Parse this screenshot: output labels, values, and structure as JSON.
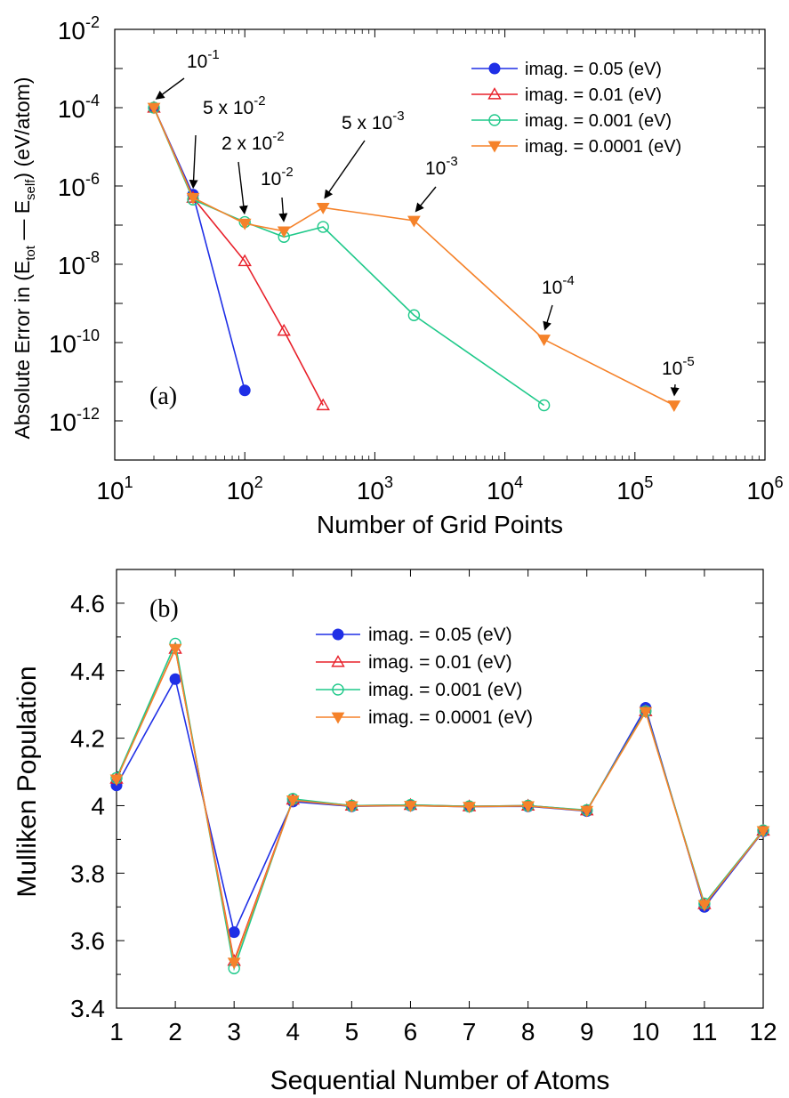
{
  "chart_data": [
    {
      "panel_label": "(a)",
      "type": "line",
      "x_scale": "log",
      "y_scale": "log",
      "xlabel": "Number of Grid Points",
      "ylabel": {
        "prefix": "Absolute Error in (E",
        "sub1": "tot",
        "mid": " — E",
        "sub2": "self",
        "suffix": ") (eV/atom)"
      },
      "xlim_exp": [
        1,
        6
      ],
      "ylim_exp": [
        -13,
        -2
      ],
      "x_ticks": [
        {
          "base": "10",
          "exp": "1"
        },
        {
          "base": "10",
          "exp": "2"
        },
        {
          "base": "10",
          "exp": "3"
        },
        {
          "base": "10",
          "exp": "4"
        },
        {
          "base": "10",
          "exp": "5"
        },
        {
          "base": "10",
          "exp": "6"
        }
      ],
      "y_ticks": [
        {
          "base": "10",
          "exp": "-2"
        },
        {
          "base": "10",
          "exp": "-4"
        },
        {
          "base": "10",
          "exp": "-6"
        },
        {
          "base": "10",
          "exp": "-8"
        },
        {
          "base": "10",
          "exp": "-10"
        },
        {
          "base": "10",
          "exp": "-12"
        }
      ],
      "legend_position": "top-right",
      "series": [
        {
          "name": "imag. = 0.05 (eV)",
          "color": "#1f2fe6",
          "marker": "circle-filled",
          "x": [
            20,
            40,
            100
          ],
          "y": [
            0.0001,
            6e-07,
            6e-12
          ]
        },
        {
          "name": "imag. = 0.01 (eV)",
          "color": "#e8202a",
          "marker": "triangle-up-open",
          "x": [
            20,
            40,
            100,
            200,
            400
          ],
          "y": [
            0.0001,
            5e-07,
            1.2e-08,
            2e-10,
            2.5e-12
          ]
        },
        {
          "name": "imag. = 0.001 (eV)",
          "color": "#1fc98a",
          "marker": "circle-open",
          "x": [
            20,
            40,
            100,
            200,
            400,
            2000,
            20000
          ],
          "y": [
            0.0001,
            4.5e-07,
            1.2e-07,
            5e-08,
            9e-08,
            5e-10,
            2.5e-12
          ]
        },
        {
          "name": "imag. = 0.0001 (eV)",
          "color": "#f5822a",
          "marker": "triangle-down-filled",
          "x": [
            20,
            40,
            100,
            200,
            400,
            2000,
            20000,
            200000
          ],
          "y": [
            0.0001,
            5e-07,
            1.1e-07,
            7e-08,
            2.8e-07,
            1.3e-07,
            1.2e-10,
            2.5e-12
          ]
        }
      ],
      "annotations": [
        {
          "base": "10",
          "exp": "-1",
          "x": 20,
          "y": 0.0001
        },
        {
          "base": "5 x 10",
          "exp": "-2",
          "x": 40,
          "y": 5e-07
        },
        {
          "base": "2 x 10",
          "exp": "-2",
          "x": 100,
          "y": 1.1e-07
        },
        {
          "base": "10",
          "exp": "-2",
          "x": 200,
          "y": 7e-08
        },
        {
          "base": "5 x 10",
          "exp": "-3",
          "x": 400,
          "y": 2.8e-07
        },
        {
          "base": "10",
          "exp": "-3",
          "x": 2000,
          "y": 1.3e-07
        },
        {
          "base": "10",
          "exp": "-4",
          "x": 20000,
          "y": 1.2e-10
        },
        {
          "base": "10",
          "exp": "-5",
          "x": 200000,
          "y": 2.5e-12
        }
      ]
    },
    {
      "panel_label": "(b)",
      "type": "line",
      "xlabel": "Sequential Number of Atoms",
      "ylabel": "Mulliken Population",
      "xlim": [
        1,
        12
      ],
      "ylim": [
        3.4,
        4.7
      ],
      "x_ticks": [
        "1",
        "2",
        "3",
        "4",
        "5",
        "6",
        "7",
        "8",
        "9",
        "10",
        "11",
        "12"
      ],
      "y_ticks": [
        {
          "value": 3.4,
          "label": "3.4"
        },
        {
          "value": 3.6,
          "label": "3.6"
        },
        {
          "value": 3.8,
          "label": "3.8"
        },
        {
          "value": 4.0,
          "label": "4"
        },
        {
          "value": 4.2,
          "label": "4.2"
        },
        {
          "value": 4.4,
          "label": "4.4"
        },
        {
          "value": 4.6,
          "label": "4.6"
        }
      ],
      "legend_position": "top-center",
      "x": [
        1,
        2,
        3,
        4,
        5,
        6,
        7,
        8,
        9,
        10,
        11,
        12
      ],
      "series": [
        {
          "name": "imag. = 0.05 (eV)",
          "color": "#1f2fe6",
          "marker": "circle-filled",
          "values": [
            4.06,
            4.375,
            3.625,
            4.012,
            3.998,
            4.0,
            3.997,
            3.998,
            3.984,
            4.29,
            3.7,
            3.924
          ]
        },
        {
          "name": "imag. = 0.01 (eV)",
          "color": "#e8202a",
          "marker": "triangle-up-open",
          "values": [
            4.08,
            4.465,
            3.54,
            4.018,
            4.0,
            4.002,
            3.998,
            4.0,
            3.986,
            4.28,
            3.708,
            3.926
          ]
        },
        {
          "name": "imag. = 0.001 (eV)",
          "color": "#1fc98a",
          "marker": "circle-open",
          "values": [
            4.082,
            4.48,
            3.518,
            4.02,
            4.0,
            4.002,
            3.998,
            4.0,
            3.987,
            4.28,
            3.71,
            3.927
          ]
        },
        {
          "name": "imag. = 0.0001 (eV)",
          "color": "#f5822a",
          "marker": "triangle-down-filled",
          "values": [
            4.078,
            4.465,
            3.535,
            4.016,
            3.999,
            4.0,
            3.997,
            3.999,
            3.985,
            4.278,
            3.706,
            3.925
          ]
        }
      ]
    }
  ]
}
